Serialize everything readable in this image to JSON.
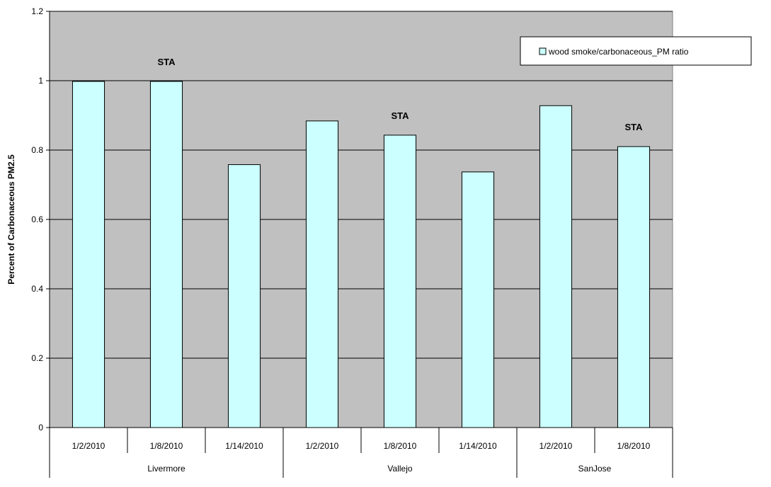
{
  "chart_data": {
    "type": "bar",
    "title": "",
    "ylabel": "Percent of Carbonaceous PM2.5",
    "xlabel": "",
    "ylim": [
      0,
      1.2
    ],
    "yticks": [
      "0",
      "0.2",
      "0.4",
      "0.6",
      "0.8",
      "1",
      "1.2"
    ],
    "grid": true,
    "legend_position": "top-right",
    "categories": [
      "1/2/2010",
      "1/8/2010",
      "1/14/2010",
      "1/2/2010",
      "1/8/2010",
      "1/14/2010",
      "1/2/2010",
      "1/8/2010"
    ],
    "groups": [
      {
        "name": "Livermore",
        "count": 3
      },
      {
        "name": "Vallejo",
        "count": 3
      },
      {
        "name": "SanJose",
        "count": 2
      }
    ],
    "series": [
      {
        "name": "wood smoke/carbonaceous_PM ratio",
        "values": [
          0.998,
          0.998,
          0.758,
          0.884,
          0.843,
          0.737,
          0.928,
          0.81
        ]
      }
    ],
    "annotations": [
      "",
      "STA",
      "",
      "",
      "STA",
      "",
      "",
      "STA"
    ],
    "colors": {
      "plot_bg": "#c0c0c0",
      "bar_fill": "#ccffff",
      "bar_stroke": "#000000",
      "grid": "#000000"
    }
  }
}
